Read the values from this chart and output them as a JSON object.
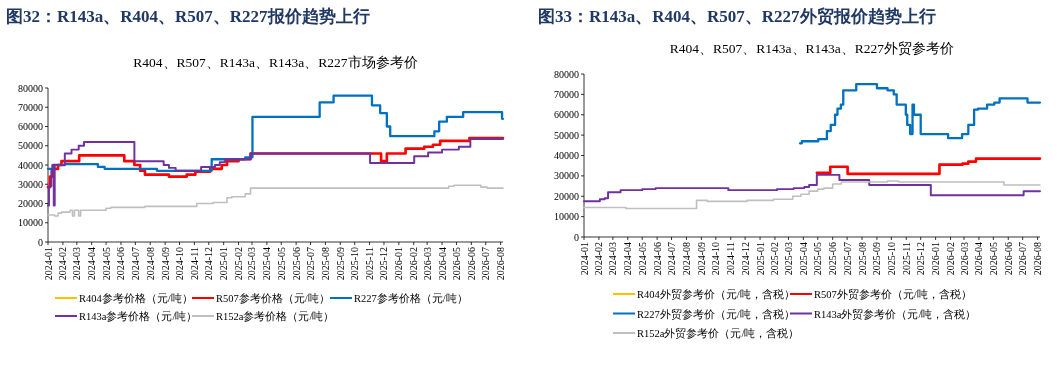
{
  "chart_data": [
    {
      "type": "step",
      "title": "图32：R143a、R404、R507、R227报价趋势上行",
      "subtitle": "R404、R507、R143a、R143a、R227市场参考价",
      "xlim": [
        "2024-01-01",
        "2026-08-06"
      ],
      "ylim": [
        0,
        80000
      ],
      "xticks": [
        "2024-01",
        "2024-02",
        "2024-03",
        "2024-04",
        "2024-05",
        "2024-06",
        "2024-07",
        "2024-08",
        "2024-09",
        "2024-10",
        "2024-11",
        "2024-12",
        "2025-01",
        "2025-02",
        "2025-03",
        "2025-04",
        "2025-05",
        "2025-06",
        "2025-07",
        "2025-08",
        "2025-09",
        "2025-10",
        "2025-11",
        "2025-12",
        "2026-01",
        "2026-02",
        "2026-03",
        "2026-04",
        "2026-05",
        "2026-06",
        "2026-07",
        "2026-08"
      ],
      "yticks": [
        0,
        10000,
        20000,
        30000,
        40000,
        50000,
        60000,
        70000,
        80000
      ],
      "legend": "bottom",
      "series": [
        {
          "name": "R404参考价格（元/吨）",
          "color": "#ffc000"
        },
        {
          "name": "R507参考价格（元/吨）",
          "color": "#ff0000",
          "x": [
            "2024-01-01",
            "2024-01-05",
            "2024-01-12",
            "2024-01-22",
            "2024-01-29",
            "2024-03-06",
            "2024-06-08",
            "2024-06-29",
            "2024-07-11",
            "2024-07-21",
            "2024-09-09",
            "2024-10-16",
            "2024-11-03",
            "2024-12-04",
            "2024-12-28",
            "2025-01-08",
            "2025-02-01",
            "2025-02-26",
            "2025-11-25",
            "2025-12-07",
            "2026-01-15",
            "2026-02-23",
            "2026-03-13",
            "2026-03-28",
            "2026-05-28",
            "2026-08-06"
          ],
          "values": [
            28500,
            34000,
            38000,
            40000,
            42000,
            45000,
            42000,
            40000,
            37000,
            35000,
            34000,
            35000,
            36500,
            38000,
            40000,
            42000,
            43000,
            46000,
            42000,
            46000,
            48500,
            49500,
            50500,
            52500,
            54000,
            54000
          ]
        },
        {
          "name": "R227参考价格（元/吨）",
          "color": "#0070c0",
          "x": [
            "2024-01-01",
            "2024-01-12",
            "2024-02-05",
            "2024-04-14",
            "2024-04-28",
            "2024-08-15",
            "2024-12-07",
            "2025-02-15",
            "2025-03-02",
            "2025-07-20",
            "2025-08-18",
            "2025-11-06",
            "2025-11-23",
            "2025-12-07",
            "2025-12-14",
            "2026-03-16",
            "2026-03-26",
            "2026-04-11",
            "2026-05-15",
            "2026-08-04",
            "2026-08-06"
          ],
          "values": [
            38000,
            40000,
            40500,
            39000,
            38000,
            37000,
            43000,
            44000,
            65000,
            72500,
            76000,
            71000,
            67000,
            60000,
            55000,
            57500,
            62500,
            65000,
            67500,
            64000,
            64000
          ]
        },
        {
          "name": "R143a参考价格（元/吨）",
          "color": "#7030a0",
          "x": [
            "2024-01-01",
            "2024-01-03",
            "2024-01-08",
            "2024-01-10",
            "2024-01-13",
            "2024-01-15",
            "2024-02-05",
            "2024-02-19",
            "2024-03-05",
            "2024-03-16",
            "2024-06-29",
            "2024-08-29",
            "2024-09-09",
            "2024-09-23",
            "2024-11-15",
            "2024-12-14",
            "2024-12-24",
            "2025-01-04",
            "2025-02-26",
            "2025-11-02",
            "2026-02-02",
            "2026-03-03",
            "2026-04-01",
            "2026-05-06",
            "2026-05-30",
            "2026-08-06"
          ],
          "values": [
            19000,
            29000,
            37000,
            40000,
            19000,
            40000,
            46000,
            48000,
            50000,
            52000,
            42000,
            40000,
            38500,
            37000,
            39000,
            40000,
            41500,
            43000,
            46000,
            41000,
            44500,
            46500,
            48000,
            49500,
            53500,
            53500
          ]
        },
        {
          "name": "R152a参考价格（元/吨）",
          "color": "#bfbfbf",
          "x": [
            "2024-01-01",
            "2024-01-15",
            "2024-01-22",
            "2024-01-29",
            "2024-02-16",
            "2024-02-21",
            "2024-02-25",
            "2024-03-05",
            "2024-03-09",
            "2024-05-01",
            "2024-05-11",
            "2024-07-21",
            "2024-11-06",
            "2024-12-10",
            "2025-01-08",
            "2025-01-18",
            "2025-02-15",
            "2025-02-26",
            "2026-04-15",
            "2026-04-26",
            "2026-06-21",
            "2026-07-04",
            "2026-08-06"
          ],
          "values": [
            14000,
            13500,
            15000,
            15500,
            16500,
            13500,
            16500,
            13500,
            16500,
            17500,
            18000,
            18500,
            20000,
            20500,
            23000,
            23500,
            25000,
            28000,
            29000,
            29500,
            28500,
            28000,
            28000
          ]
        }
      ]
    },
    {
      "type": "step",
      "title": "图33：R143a、R404、R507、R227外贸报价趋势上行",
      "subtitle": "R404、R507、R143a、R143a、R227外贸参考价",
      "xlim": [
        "2024-01-01",
        "2026-08-06"
      ],
      "ylim": [
        0,
        80000
      ],
      "xticks": [
        "2024-01",
        "2024-02",
        "2024-03",
        "2024-04",
        "2024-05",
        "2024-06",
        "2024-07",
        "2024-08",
        "2024-09",
        "2024-10",
        "2024-11",
        "2024-12",
        "2025-01",
        "2025-02",
        "2025-03",
        "2025-04",
        "2025-05",
        "2025-06",
        "2025-07",
        "2025-08",
        "2025-09",
        "2025-10",
        "2025-11",
        "2025-12",
        "2026-01",
        "2026-02",
        "2026-03",
        "2026-04",
        "2026-05",
        "2026-06",
        "2026-07",
        "2026-08"
      ],
      "yticks": [
        0,
        10000,
        20000,
        30000,
        40000,
        50000,
        60000,
        70000,
        80000
      ],
      "legend": "bottom",
      "series": [
        {
          "name": "R404外贸参考价（元/吨，含税）",
          "color": "#ffc000"
        },
        {
          "name": "R507外贸参考价（元/吨，含税）",
          "color": "#ff0000",
          "x": [
            "2025-04-29",
            "2025-05-27",
            "2025-07-02",
            "2026-01-09",
            "2026-02-26",
            "2026-03-10",
            "2026-03-26",
            "2026-08-06"
          ],
          "values": [
            31500,
            34500,
            31000,
            35500,
            36000,
            37000,
            38500,
            38500
          ]
        },
        {
          "name": "R227外贸参考价（元/吨，含税）",
          "color": "#0070c0",
          "x": [
            "2025-03-25",
            "2025-03-29",
            "2025-05-02",
            "2025-05-20",
            "2025-05-28",
            "2025-06-06",
            "2025-06-11",
            "2025-06-18",
            "2025-06-23",
            "2025-07-20",
            "2025-09-01",
            "2025-09-23",
            "2025-10-06",
            "2025-10-12",
            "2025-10-31",
            "2025-11-03",
            "2025-11-09",
            "2025-11-14",
            "2025-11-17",
            "2025-12-01",
            "2026-01-27",
            "2026-02-25",
            "2026-03-10",
            "2026-03-22",
            "2026-03-30",
            "2026-04-18",
            "2026-05-03",
            "2026-05-14",
            "2026-07-11",
            "2026-08-06"
          ],
          "values": [
            46000,
            47000,
            48000,
            52000,
            55000,
            60000,
            63000,
            65000,
            72000,
            75000,
            73000,
            72000,
            70000,
            65000,
            60000,
            55000,
            50500,
            65000,
            60000,
            50500,
            48500,
            50500,
            55000,
            62500,
            63000,
            65000,
            66000,
            68000,
            66000,
            66000
          ]
        },
        {
          "name": "R143a外贸参考价（元/吨，含税）",
          "color": "#7030a0",
          "x": [
            "2024-01-01",
            "2024-02-03",
            "2024-02-13",
            "2024-02-20",
            "2024-03-17",
            "2024-05-01",
            "2024-05-29",
            "2024-10-27",
            "2025-02-05",
            "2025-03-12",
            "2025-04-03",
            "2025-04-13",
            "2025-04-29",
            "2025-06-15",
            "2025-08-16",
            "2025-12-22",
            "2026-07-03",
            "2026-08-06"
          ],
          "values": [
            17500,
            18500,
            19000,
            22000,
            23000,
            23500,
            24000,
            23000,
            23500,
            24000,
            24500,
            25500,
            30500,
            28000,
            25500,
            20500,
            22500,
            22500
          ]
        },
        {
          "name": "R152a外贸参考价（元/吨，含税）",
          "color": "#bfbfbf",
          "x": [
            "2024-01-01",
            "2024-03-28",
            "2024-08-22",
            "2024-09-13",
            "2024-12-05",
            "2025-01-29",
            "2025-03-10",
            "2025-03-27",
            "2025-04-13",
            "2025-05-01",
            "2025-05-14",
            "2025-06-01",
            "2025-06-19",
            "2025-09-23",
            "2025-10-16",
            "2026-05-23",
            "2026-08-06"
          ],
          "values": [
            14500,
            14000,
            18000,
            17500,
            18000,
            18500,
            20000,
            21000,
            22500,
            23500,
            24000,
            26000,
            27000,
            27500,
            27000,
            25500,
            25500
          ]
        }
      ]
    }
  ]
}
